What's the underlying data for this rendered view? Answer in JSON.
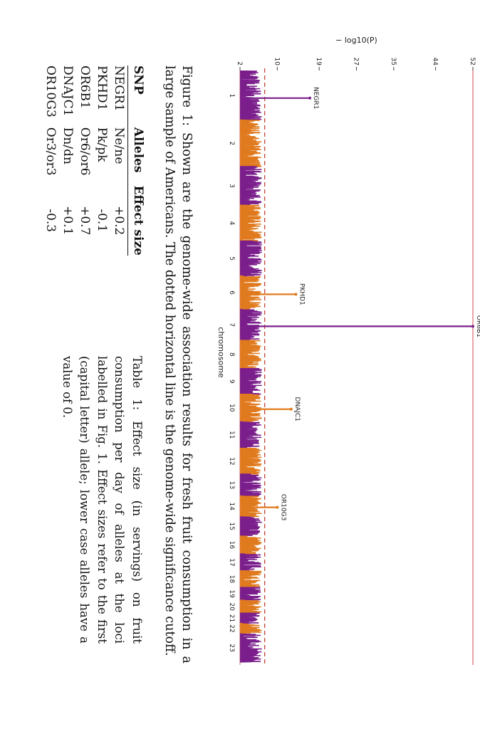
{
  "chart_data": {
    "type": "scatter",
    "subtype": "manhattan",
    "ylabel": "− log10(P)",
    "xlabel": "chromosome",
    "y_ticks": [
      2,
      10,
      19,
      27,
      35,
      44,
      52
    ],
    "ylim": [
      2,
      52
    ],
    "chromosomes": [
      "1",
      "2",
      "3",
      "4",
      "5",
      "6",
      "7",
      "8",
      "9",
      "10",
      "11",
      "12",
      "13",
      "14",
      "15",
      "16",
      "17",
      "18",
      "19",
      "20",
      "21",
      "22",
      "23"
    ],
    "significance_cutoff": 7.3,
    "max_line": 52,
    "colors": {
      "odd": "#7b1f8c",
      "even": "#e07a1e",
      "cutoff": "#c0392b",
      "frame": "#d96b6b"
    },
    "peaks": [
      {
        "label": "NEGR1",
        "chromosome": "1",
        "neglog10p": 17
      },
      {
        "label": "PKHD1",
        "chromosome": "6",
        "neglog10p": 14
      },
      {
        "label": "OR6B1",
        "chromosome": "7",
        "neglog10p": 52
      },
      {
        "label": "DNAJC1",
        "chromosome": "10",
        "neglog10p": 13
      },
      {
        "label": "OR10G3",
        "chromosome": "14",
        "neglog10p": 10
      }
    ]
  },
  "figure_caption": "Figure 1: Shown are the genome-wide association results for fresh fruit consumption in a large sample of Americans. The dotted horizontal line is the genome-wide significance cutoff.",
  "table": {
    "headers": [
      "SNP",
      "Alleles",
      "Effect size"
    ],
    "rows": [
      [
        "NEGR1",
        "Ne/ne",
        "+0.2"
      ],
      [
        "PKHD1",
        "Pk/pk",
        "-0.1"
      ],
      [
        "OR6B1",
        "Or6/or6",
        "+0.7"
      ],
      [
        "DNAJC1",
        "Dn/dn",
        "+0.1"
      ],
      [
        "OR10G3",
        "Or3/or3",
        "-0.3"
      ]
    ]
  },
  "table_caption": "Table 1: Effect size (in servings) on fruit consumption per day of alleles at the loci labelled in Fig. 1. Effect sizes refer to the first (capital letter) allele; lower case alleles have a value of 0."
}
